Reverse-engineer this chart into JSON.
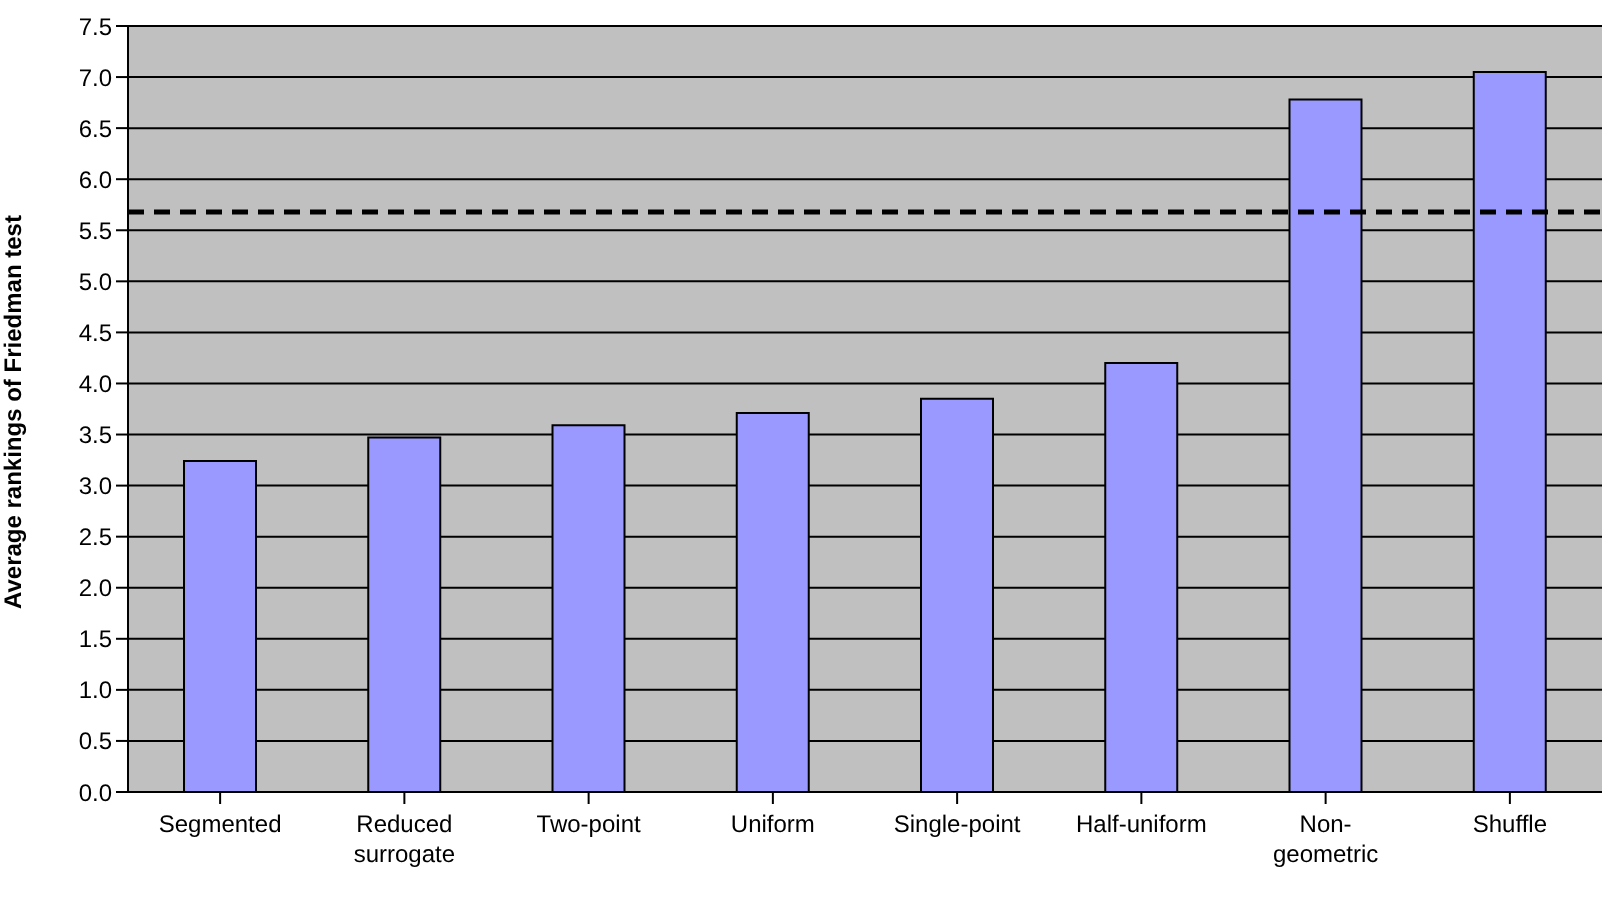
{
  "chart_data": {
    "type": "bar",
    "ylabel": "Average rankings of Friedman test",
    "categories": [
      "Segmented",
      "Reduced surrogate",
      "Two-point",
      "Uniform",
      "Single-point",
      "Half-uniform",
      "Non-geometric",
      "Shuffle"
    ],
    "values": [
      3.24,
      3.47,
      3.59,
      3.71,
      3.85,
      4.2,
      6.78,
      7.05
    ],
    "color": "#9999ff",
    "ylim": [
      0,
      7.5
    ],
    "yticks": [
      {
        "value": 0,
        "label": "0.0"
      },
      {
        "value": 0.5,
        "label": "0.5"
      },
      {
        "value": 1,
        "label": "1.0"
      },
      {
        "value": 1.5,
        "label": "1.5"
      },
      {
        "value": 2,
        "label": "2.0"
      },
      {
        "value": 2.5,
        "label": "2.5"
      },
      {
        "value": 3,
        "label": "3.0"
      },
      {
        "value": 3.5,
        "label": "3.5"
      },
      {
        "value": 4,
        "label": "4.0"
      },
      {
        "value": 4.5,
        "label": "4.5"
      },
      {
        "value": 5,
        "label": "5.0"
      },
      {
        "value": 5.5,
        "label": "5.5"
      },
      {
        "value": 6,
        "label": "6.0"
      },
      {
        "value": 6.5,
        "label": "6.5"
      },
      {
        "value": 7,
        "label": "7.0"
      },
      {
        "value": 7.5,
        "label": "7.5"
      }
    ],
    "grid": "y",
    "ref_lines": [
      {
        "axis": "y",
        "value": 5.68,
        "color": "#000000",
        "line_style": "dashed"
      }
    ]
  }
}
